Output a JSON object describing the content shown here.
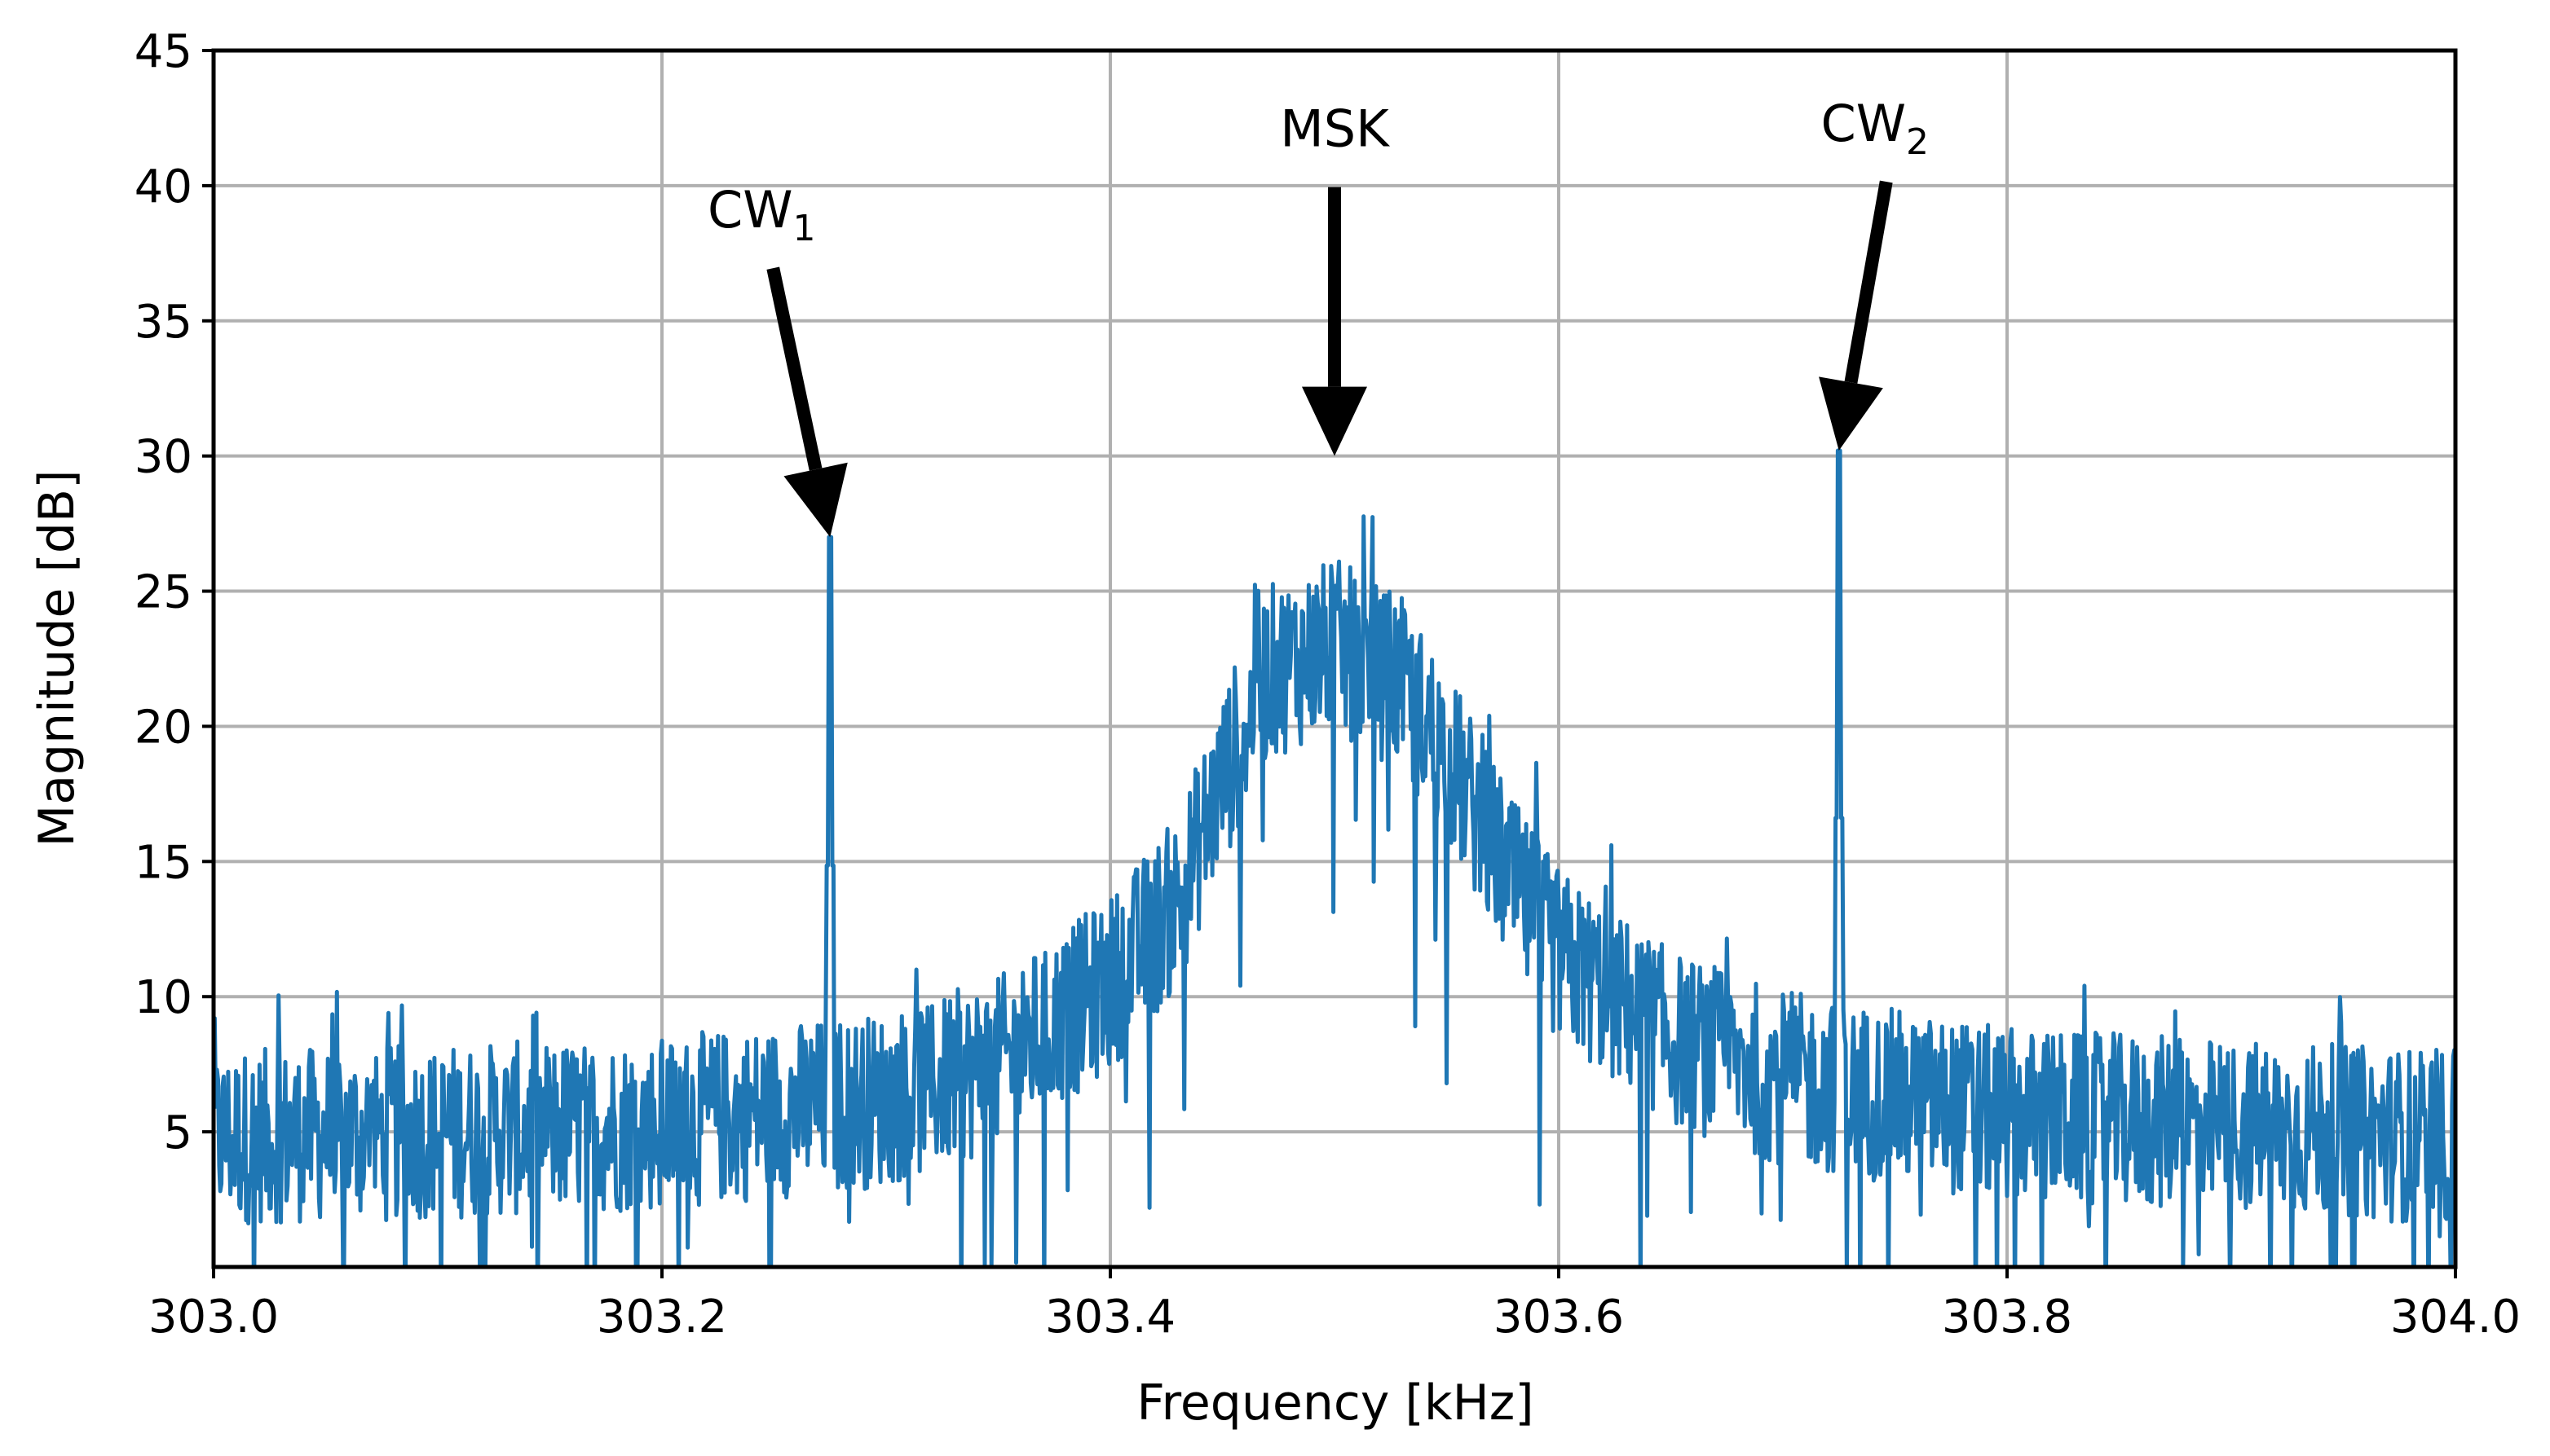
{
  "chart_data": {
    "type": "line",
    "xlabel": "Frequency [kHz]",
    "ylabel": "Magnitude [dB]",
    "xlim": [
      303.0,
      304.0
    ],
    "ylim": [
      0,
      45
    ],
    "grid": true,
    "x_ticks": [
      303.0,
      303.2,
      303.4,
      303.6,
      303.8,
      304.0
    ],
    "x_tick_labels": [
      "303.0",
      "303.2",
      "303.4",
      "303.6",
      "303.8",
      "304.0"
    ],
    "y_ticks": [
      5,
      10,
      15,
      20,
      25,
      30,
      35,
      40,
      45
    ],
    "y_tick_labels": [
      "5",
      "10",
      "15",
      "20",
      "25",
      "30",
      "35",
      "40",
      "45"
    ],
    "series": [
      {
        "color": "#1f77b4",
        "envelope": [
          {
            "x": 303.0,
            "y": 4.8
          },
          {
            "x": 303.1,
            "y": 5.0
          },
          {
            "x": 303.2,
            "y": 5.3
          },
          {
            "x": 303.3,
            "y": 6.2
          },
          {
            "x": 303.35,
            "y": 7.5
          },
          {
            "x": 303.4,
            "y": 10.5
          },
          {
            "x": 303.43,
            "y": 13.5
          },
          {
            "x": 303.45,
            "y": 18.0
          },
          {
            "x": 303.47,
            "y": 22.0
          },
          {
            "x": 303.5,
            "y": 23.0
          },
          {
            "x": 303.53,
            "y": 21.5
          },
          {
            "x": 303.55,
            "y": 19.0
          },
          {
            "x": 303.58,
            "y": 14.0
          },
          {
            "x": 303.6,
            "y": 11.5
          },
          {
            "x": 303.65,
            "y": 8.5
          },
          {
            "x": 303.7,
            "y": 7.0
          },
          {
            "x": 303.8,
            "y": 5.6
          },
          {
            "x": 303.9,
            "y": 5.2
          },
          {
            "x": 304.0,
            "y": 4.8
          }
        ],
        "peaks": [
          {
            "x": 303.275,
            "y": 27.0
          },
          {
            "x": 303.725,
            "y": 30.2
          }
        ]
      }
    ],
    "annotations": [
      {
        "label": "CW",
        "subscript": "1",
        "target": {
          "x": 303.275,
          "y": 27.0
        }
      },
      {
        "label": "MSK",
        "subscript": "",
        "target": {
          "x": 303.5,
          "y": 30.0
        }
      },
      {
        "label": "CW",
        "subscript": "2",
        "target": {
          "x": 303.725,
          "y": 30.2
        }
      }
    ]
  }
}
